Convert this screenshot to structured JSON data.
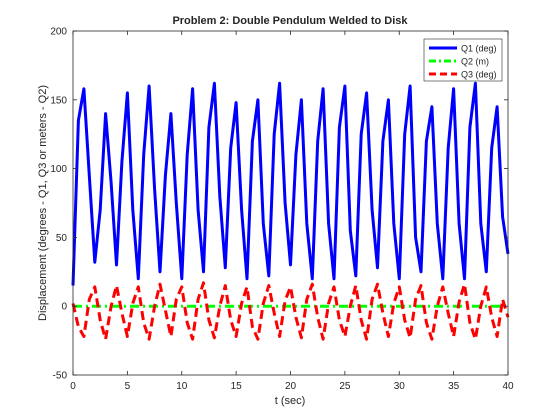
{
  "chart_data": {
    "type": "line",
    "title": "Problem 2: Double Pendulum Welded to Disk",
    "xlabel": "t (sec)",
    "ylabel": "Displacement (degrees - Q1, Q3 or meters - Q2)",
    "xlim": [
      0,
      40
    ],
    "ylim": [
      -50,
      200
    ],
    "xticks": [
      0,
      5,
      10,
      15,
      20,
      25,
      30,
      35,
      40
    ],
    "yticks": [
      -50,
      0,
      50,
      100,
      150,
      200
    ],
    "xtick_labels": [
      "0",
      "5",
      "10",
      "15",
      "20",
      "25",
      "30",
      "35",
      "40"
    ],
    "ytick_labels": [
      "-50",
      "0",
      "50",
      "100",
      "150",
      "200"
    ],
    "grid": false,
    "legend_position": "top-right",
    "series": [
      {
        "name": "Q1 (deg)",
        "color": "#0000ff",
        "dash": "solid",
        "x": [
          0,
          0.5,
          1.0,
          1.5,
          2.0,
          2.5,
          3.0,
          3.5,
          4.0,
          4.5,
          5.0,
          5.5,
          6.0,
          6.5,
          7.0,
          7.5,
          8.0,
          8.5,
          9.0,
          9.5,
          10.0,
          10.5,
          11.0,
          11.5,
          12.0,
          12.5,
          13.0,
          13.5,
          14.0,
          14.5,
          15.0,
          15.5,
          16.0,
          16.5,
          17.0,
          17.5,
          18.0,
          18.5,
          19.0,
          19.5,
          20.0,
          20.5,
          21.0,
          21.5,
          22.0,
          22.5,
          23.0,
          23.5,
          24.0,
          24.5,
          25.0,
          25.5,
          26.0,
          26.5,
          27.0,
          27.5,
          28.0,
          28.5,
          29.0,
          29.5,
          30.0,
          30.5,
          31.0,
          31.5,
          32.0,
          32.5,
          33.0,
          33.5,
          34.0,
          34.5,
          35.0,
          35.5,
          36.0,
          36.5,
          37.0,
          37.5,
          38.0,
          38.5,
          39.0,
          39.5,
          40.0
        ],
        "values": [
          15,
          135,
          158,
          95,
          32,
          70,
          140,
          90,
          30,
          105,
          155,
          70,
          20,
          110,
          160,
          85,
          25,
          95,
          140,
          75,
          20,
          110,
          158,
          70,
          25,
          130,
          162,
          80,
          28,
          115,
          148,
          70,
          20,
          120,
          150,
          60,
          22,
          125,
          162,
          75,
          30,
          110,
          150,
          60,
          20,
          120,
          158,
          60,
          20,
          130,
          160,
          55,
          22,
          125,
          155,
          70,
          28,
          120,
          150,
          60,
          20,
          125,
          160,
          50,
          25,
          120,
          145,
          60,
          20,
          115,
          158,
          60,
          20,
          130,
          162,
          60,
          25,
          115,
          145,
          65,
          38
        ]
      },
      {
        "name": "Q2 (m)",
        "color": "#00ff00",
        "dash": "dashdot",
        "x": [
          0,
          40
        ],
        "values": [
          0,
          0
        ]
      },
      {
        "name": "Q3 (deg)",
        "color": "#ff0000",
        "dash": "dashed",
        "x": [
          0,
          0.5,
          1.0,
          1.5,
          2.0,
          2.5,
          3.0,
          3.5,
          4.0,
          4.5,
          5.0,
          5.5,
          6.0,
          6.5,
          7.0,
          7.5,
          8.0,
          8.5,
          9.0,
          9.5,
          10.0,
          10.5,
          11.0,
          11.5,
          12.0,
          12.5,
          13.0,
          13.5,
          14.0,
          14.5,
          15.0,
          15.5,
          16.0,
          16.5,
          17.0,
          17.5,
          18.0,
          18.5,
          19.0,
          19.5,
          20.0,
          20.5,
          21.0,
          21.5,
          22.0,
          22.5,
          23.0,
          23.5,
          24.0,
          24.5,
          25.0,
          25.5,
          26.0,
          26.5,
          27.0,
          27.5,
          28.0,
          28.5,
          29.0,
          29.5,
          30.0,
          30.5,
          31.0,
          31.5,
          32.0,
          32.5,
          33.0,
          33.5,
          34.0,
          34.5,
          35.0,
          35.5,
          36.0,
          36.5,
          37.0,
          37.5,
          38.0,
          38.5,
          39.0,
          39.5,
          40.0
        ],
        "values": [
          2,
          -15,
          -22,
          5,
          14,
          -10,
          -24,
          0,
          15,
          -5,
          -22,
          2,
          14,
          -12,
          -24,
          0,
          16,
          -3,
          -22,
          5,
          14,
          -12,
          -24,
          5,
          17,
          -10,
          -23,
          0,
          15,
          -10,
          -22,
          2,
          14,
          -15,
          -24,
          2,
          15,
          -5,
          -22,
          4,
          14,
          -8,
          -23,
          5,
          16,
          -8,
          -24,
          2,
          14,
          -10,
          -22,
          0,
          15,
          -10,
          -24,
          5,
          16,
          -5,
          -22,
          2,
          14,
          -10,
          -23,
          5,
          15,
          -12,
          -24,
          0,
          14,
          -5,
          -22,
          3,
          16,
          -12,
          -24,
          0,
          14,
          -8,
          -22,
          5,
          -8
        ]
      }
    ]
  }
}
